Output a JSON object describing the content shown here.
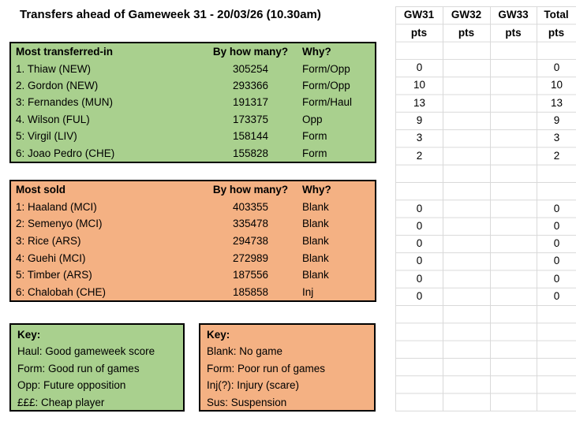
{
  "title": "Transfers ahead of Gameweek 31 - 20/03/26 (10.30am)",
  "pts_header": {
    "cols": [
      {
        "gw": "GW31",
        "unit": "pts"
      },
      {
        "gw": "GW32",
        "unit": "pts"
      },
      {
        "gw": "GW33",
        "unit": "pts"
      },
      {
        "gw": "Total",
        "unit": "pts"
      }
    ]
  },
  "transfers_in": {
    "header": {
      "label": "Most transferred-in",
      "count": "By how many?",
      "why": "Why?"
    },
    "rows": [
      {
        "name": "1. Thiaw (NEW)",
        "count": "305254",
        "why": "Form/Opp",
        "gw31": "0",
        "gw32": "",
        "gw33": "",
        "total": "0"
      },
      {
        "name": "2. Gordon (NEW)",
        "count": "293366",
        "why": "Form/Opp",
        "gw31": "10",
        "gw32": "",
        "gw33": "",
        "total": "10"
      },
      {
        "name": "3: Fernandes (MUN)",
        "count": "191317",
        "why": "Form/Haul",
        "gw31": "13",
        "gw32": "",
        "gw33": "",
        "total": "13"
      },
      {
        "name": "4. Wilson (FUL)",
        "count": "173375",
        "why": "Opp",
        "gw31": "9",
        "gw32": "",
        "gw33": "",
        "total": "9"
      },
      {
        "name": "5: Virgil (LIV)",
        "count": "158144",
        "why": "Form",
        "gw31": "3",
        "gw32": "",
        "gw33": "",
        "total": "3"
      },
      {
        "name": "6: Joao Pedro (CHE)",
        "count": "155828",
        "why": "Form",
        "gw31": "2",
        "gw32": "",
        "gw33": "",
        "total": "2"
      }
    ]
  },
  "transfers_out": {
    "header": {
      "label": "Most sold",
      "count": "By how many?",
      "why": "Why?"
    },
    "rows": [
      {
        "name": "1: Haaland (MCI)",
        "count": "403355",
        "why": "Blank",
        "gw31": "0",
        "gw32": "",
        "gw33": "",
        "total": "0"
      },
      {
        "name": "2: Semenyo (MCI)",
        "count": "335478",
        "why": "Blank",
        "gw31": "0",
        "gw32": "",
        "gw33": "",
        "total": "0"
      },
      {
        "name": "3: Rice (ARS)",
        "count": "294738",
        "why": "Blank",
        "gw31": "0",
        "gw32": "",
        "gw33": "",
        "total": "0"
      },
      {
        "name": "4: Guehi (MCI)",
        "count": "272989",
        "why": "Blank",
        "gw31": "0",
        "gw32": "",
        "gw33": "",
        "total": "0"
      },
      {
        "name": "5: Timber (ARS)",
        "count": "187556",
        "why": "Blank",
        "gw31": "0",
        "gw32": "",
        "gw33": "",
        "total": "0"
      },
      {
        "name": "6: Chalobah (CHE)",
        "count": "185858",
        "why": "Inj",
        "gw31": "0",
        "gw32": "",
        "gw33": "",
        "total": "0"
      }
    ]
  },
  "key_in": {
    "title": "Key:",
    "lines": [
      "Haul: Good gameweek score",
      "Form: Good run of games",
      "Opp: Future opposition",
      "£££: Cheap player"
    ]
  },
  "key_out": {
    "title": "Key:",
    "lines": [
      "Blank: No game",
      "Form: Poor run of games",
      "Inj(?): Injury (scare)",
      "Sus: Suspension"
    ]
  },
  "colors": {
    "table_green": "#A9D08E",
    "table_orange": "#F4B183",
    "gridline": "#D9D9D9",
    "border": "#000000",
    "text": "#000000"
  }
}
